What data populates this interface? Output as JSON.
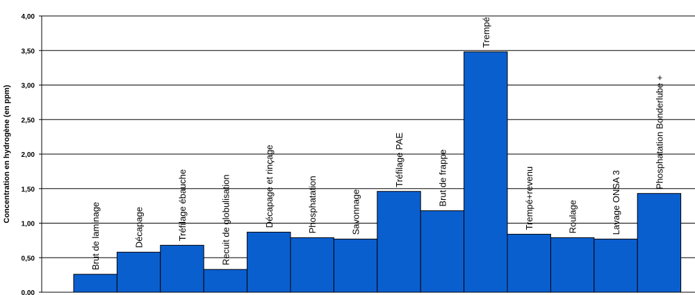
{
  "chart_data": {
    "type": "bar",
    "title": "",
    "xlabel": "",
    "ylabel": "Concentration en hydrogène (en ppm)",
    "ylim": [
      0,
      4
    ],
    "yticks": [
      "0,00",
      "0,50",
      "1,00",
      "1,50",
      "2,00",
      "2,50",
      "3,00",
      "3,50",
      "4,00"
    ],
    "grid": true,
    "legend": "none",
    "bar_color": "#0a5fcf",
    "categories": [
      "Brut de laminage",
      "Décapage",
      "Tréfilage ébauche",
      "Recuit de globulisation",
      "Décapage et rinçage",
      "Phosphatation",
      "Savonnage",
      "Tréfilage PAE",
      "Brut de frappe",
      "Trempé",
      "Trempé+revenu",
      "Roulage",
      "Lavage ONSA 3",
      "Phosphatation Bonderlube +"
    ],
    "values": [
      0.26,
      0.58,
      0.68,
      0.33,
      0.87,
      0.79,
      0.77,
      1.46,
      1.18,
      3.48,
      0.84,
      0.79,
      0.77,
      1.43
    ]
  }
}
